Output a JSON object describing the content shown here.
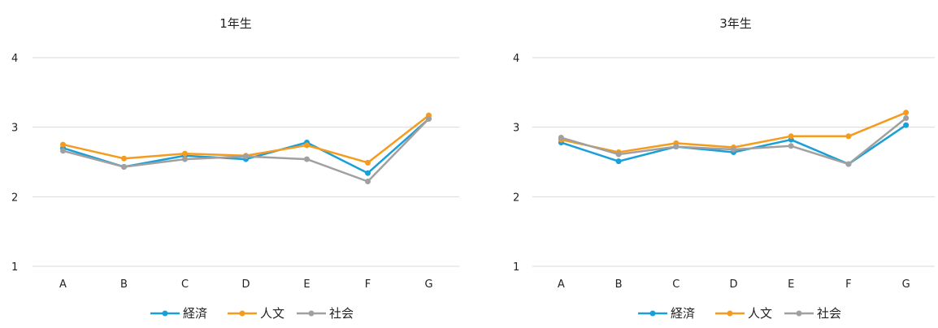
{
  "chart_data": [
    {
      "type": "line",
      "title": "1年生",
      "categories": [
        "A",
        "B",
        "C",
        "D",
        "E",
        "F",
        "G"
      ],
      "ylim": [
        1,
        4
      ],
      "yticks": [
        1,
        2,
        3,
        4
      ],
      "grid": true,
      "legend": "bottom",
      "series": [
        {
          "name": "経済",
          "color": "#1a9fd9",
          "values": [
            2.7,
            2.43,
            2.59,
            2.54,
            2.78,
            2.34,
            3.12
          ]
        },
        {
          "name": "人文",
          "color": "#f59b1e",
          "values": [
            2.75,
            2.55,
            2.62,
            2.59,
            2.74,
            2.49,
            3.17
          ]
        },
        {
          "name": "社会",
          "color": "#a0a0a0",
          "values": [
            2.66,
            2.43,
            2.54,
            2.58,
            2.54,
            2.22,
            3.12
          ]
        }
      ]
    },
    {
      "type": "line",
      "title": "3年生",
      "categories": [
        "A",
        "B",
        "C",
        "D",
        "E",
        "F",
        "G"
      ],
      "ylim": [
        1,
        4
      ],
      "yticks": [
        1,
        2,
        3,
        4
      ],
      "grid": true,
      "legend": "bottom",
      "series": [
        {
          "name": "経済",
          "color": "#1a9fd9",
          "values": [
            2.78,
            2.51,
            2.72,
            2.64,
            2.82,
            2.47,
            3.03
          ]
        },
        {
          "name": "人文",
          "color": "#f59b1e",
          "values": [
            2.82,
            2.64,
            2.77,
            2.71,
            2.87,
            2.87,
            3.21
          ]
        },
        {
          "name": "社会",
          "color": "#a0a0a0",
          "values": [
            2.85,
            2.61,
            2.72,
            2.68,
            2.73,
            2.47,
            3.13
          ]
        }
      ]
    }
  ]
}
